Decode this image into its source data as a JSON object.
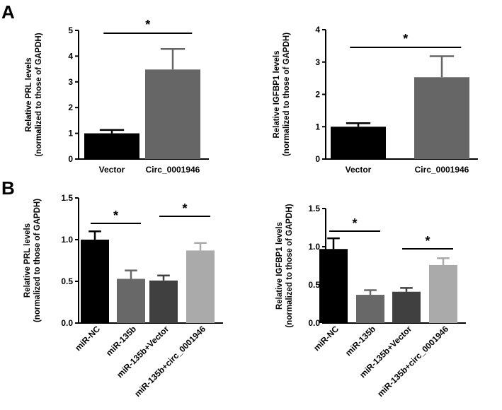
{
  "panels": [
    {
      "label": "A"
    },
    {
      "label": "B"
    }
  ],
  "chart_data": [
    {
      "type": "bar",
      "panel": "A",
      "ylabel_lines": [
        "Relative PRL levels",
        "(normalized to those of GAPDH)"
      ],
      "categories": [
        "Vector",
        "Circ_0001946"
      ],
      "values": [
        1.0,
        3.48
      ],
      "errors": [
        0.13,
        0.8
      ],
      "colors": [
        "#000000",
        "#666666"
      ],
      "ylim": [
        0,
        5
      ],
      "yticks": [
        "0",
        "1",
        "2",
        "3",
        "4",
        "5"
      ],
      "tick_values": [
        0,
        1,
        2,
        3,
        4,
        5
      ],
      "significance": [
        {
          "from": 0,
          "to": 1,
          "label": "*"
        }
      ],
      "rotated_labels": false
    },
    {
      "type": "bar",
      "panel": "A",
      "ylabel_lines": [
        "Relative IGFBP1 levels",
        "(normalized to those of GAPDH)"
      ],
      "categories": [
        "Vector",
        "Circ_0001946"
      ],
      "values": [
        1.0,
        2.53
      ],
      "errors": [
        0.11,
        0.65
      ],
      "colors": [
        "#000000",
        "#666666"
      ],
      "ylim": [
        0,
        4
      ],
      "yticks": [
        "0",
        "1",
        "2",
        "3",
        "4"
      ],
      "tick_values": [
        0,
        1,
        2,
        3,
        4
      ],
      "significance": [
        {
          "from": 0,
          "to": 1,
          "label": "*"
        }
      ],
      "rotated_labels": false
    },
    {
      "type": "bar",
      "panel": "B",
      "ylabel_lines": [
        "Relative PRL levels",
        "(normalized to those of GAPDH)"
      ],
      "categories": [
        "miR-NC",
        "miR-135b",
        "miR-135b+Vector",
        "miR-135b+circ_0001946"
      ],
      "values": [
        1.0,
        0.53,
        0.51,
        0.87
      ],
      "errors": [
        0.1,
        0.1,
        0.06,
        0.09
      ],
      "colors": [
        "#000000",
        "#686868",
        "#404040",
        "#aaaaaa"
      ],
      "ylim": [
        0,
        1.5
      ],
      "yticks": [
        "0.0",
        "0.5",
        "1.0",
        "1.5"
      ],
      "tick_values": [
        0,
        0.5,
        1.0,
        1.5
      ],
      "significance": [
        {
          "from": 0,
          "to": 1,
          "label": "*"
        },
        {
          "from": 2,
          "to": 3,
          "label": "*"
        }
      ],
      "rotated_labels": true
    },
    {
      "type": "bar",
      "panel": "B",
      "ylabel_lines": [
        "Relative IGFBP1 levels",
        "(normalized to those of GAPDH)"
      ],
      "categories": [
        "miR-NC",
        "miR-135b",
        "miR-135b+Vector",
        "miR-135b+circ_0001946"
      ],
      "values": [
        0.97,
        0.37,
        0.41,
        0.76
      ],
      "errors": [
        0.14,
        0.06,
        0.05,
        0.09
      ],
      "colors": [
        "#000000",
        "#686868",
        "#404040",
        "#aaaaaa"
      ],
      "ylim": [
        0,
        1.5
      ],
      "yticks": [
        "0.0",
        "0.5",
        "1.0",
        "1.5"
      ],
      "tick_values": [
        0,
        0.5,
        1.0,
        1.5
      ],
      "significance": [
        {
          "from": 0,
          "to": 1,
          "label": "*"
        },
        {
          "from": 2,
          "to": 3,
          "label": "*"
        }
      ],
      "rotated_labels": true
    }
  ]
}
